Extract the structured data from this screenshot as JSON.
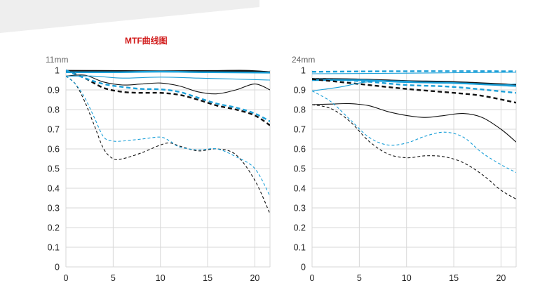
{
  "page": {
    "title": "MTF曲线图"
  },
  "colors": {
    "black": "#111111",
    "blue": "#1a9fd8",
    "grid": "#d7d7d7",
    "axis_text": "#222222",
    "focal_text": "#666666"
  },
  "chart_data": [
    {
      "type": "line",
      "focal_label": "11mm",
      "xlim": [
        0,
        21.6
      ],
      "ylim": [
        0,
        1
      ],
      "x_ticks": [
        0,
        5,
        10,
        15,
        20
      ],
      "y_ticks": [
        0,
        0.1,
        0.2,
        0.3,
        0.4,
        0.5,
        0.6,
        0.7,
        0.8,
        0.9,
        1
      ],
      "y_tick_labels": [
        "0",
        "0.1",
        "0.2",
        "0.3",
        "0.4",
        "0.5",
        "0.6",
        "0.7",
        "0.8",
        "0.9",
        "1"
      ],
      "grid": true,
      "series": [
        {
          "color": "black",
          "style": "solid",
          "weight": "thick",
          "points": [
            [
              0,
              0.997
            ],
            [
              5,
              0.996
            ],
            [
              10,
              0.995
            ],
            [
              15,
              0.996
            ],
            [
              19,
              0.997
            ],
            [
              21.6,
              0.99
            ]
          ]
        },
        {
          "color": "blue",
          "style": "solid",
          "weight": "thick",
          "points": [
            [
              0,
              0.99
            ],
            [
              5,
              0.99
            ],
            [
              10,
              0.993
            ],
            [
              15,
              0.99
            ],
            [
              21.6,
              0.988
            ]
          ]
        },
        {
          "color": "black",
          "style": "dashed",
          "weight": "thick",
          "points": [
            [
              0,
              1.0
            ],
            [
              2,
              0.96
            ],
            [
              4,
              0.91
            ],
            [
              6,
              0.89
            ],
            [
              8,
              0.885
            ],
            [
              10,
              0.885
            ],
            [
              12,
              0.875
            ],
            [
              14,
              0.85
            ],
            [
              16,
              0.82
            ],
            [
              18,
              0.8
            ],
            [
              20,
              0.77
            ],
            [
              21.6,
              0.72
            ]
          ]
        },
        {
          "color": "blue",
          "style": "dashed",
          "weight": "thick",
          "points": [
            [
              0,
              1.0
            ],
            [
              2,
              0.96
            ],
            [
              4,
              0.93
            ],
            [
              6,
              0.915
            ],
            [
              8,
              0.905
            ],
            [
              10,
              0.903
            ],
            [
              12,
              0.89
            ],
            [
              14,
              0.86
            ],
            [
              16,
              0.83
            ],
            [
              18,
              0.81
            ],
            [
              20,
              0.78
            ],
            [
              21.6,
              0.74
            ]
          ]
        },
        {
          "color": "black",
          "style": "solid",
          "weight": "thin",
          "points": [
            [
              0,
              0.97
            ],
            [
              2,
              0.975
            ],
            [
              4,
              0.94
            ],
            [
              6,
              0.925
            ],
            [
              8,
              0.93
            ],
            [
              10,
              0.935
            ],
            [
              12,
              0.92
            ],
            [
              14,
              0.89
            ],
            [
              16,
              0.88
            ],
            [
              18,
              0.9
            ],
            [
              20,
              0.93
            ],
            [
              21.6,
              0.9
            ]
          ]
        },
        {
          "color": "blue",
          "style": "solid",
          "weight": "thin",
          "points": [
            [
              0,
              0.97
            ],
            [
              3,
              0.97
            ],
            [
              6,
              0.96
            ],
            [
              10,
              0.965
            ],
            [
              14,
              0.96
            ],
            [
              18,
              0.955
            ],
            [
              21.6,
              0.95
            ]
          ]
        },
        {
          "color": "black",
          "style": "dashed",
          "weight": "thin",
          "points": [
            [
              0,
              0.97
            ],
            [
              1,
              0.93
            ],
            [
              2,
              0.84
            ],
            [
              3,
              0.72
            ],
            [
              4,
              0.6
            ],
            [
              5,
              0.55
            ],
            [
              6,
              0.55
            ],
            [
              8,
              0.58
            ],
            [
              10,
              0.62
            ],
            [
              11,
              0.63
            ],
            [
              12,
              0.615
            ],
            [
              14,
              0.59
            ],
            [
              16,
              0.6
            ],
            [
              18,
              0.57
            ],
            [
              20,
              0.44
            ],
            [
              21.6,
              0.27
            ]
          ]
        },
        {
          "color": "blue",
          "style": "dashed",
          "weight": "thin",
          "points": [
            [
              0,
              0.97
            ],
            [
              1,
              0.93
            ],
            [
              2,
              0.86
            ],
            [
              3,
              0.76
            ],
            [
              4,
              0.66
            ],
            [
              5,
              0.64
            ],
            [
              6,
              0.64
            ],
            [
              8,
              0.65
            ],
            [
              10,
              0.66
            ],
            [
              11,
              0.64
            ],
            [
              12,
              0.61
            ],
            [
              14,
              0.595
            ],
            [
              16,
              0.6
            ],
            [
              18,
              0.56
            ],
            [
              20,
              0.5
            ],
            [
              21.6,
              0.36
            ]
          ]
        }
      ]
    },
    {
      "type": "line",
      "focal_label": "24mm",
      "xlim": [
        0,
        21.6
      ],
      "ylim": [
        0,
        1
      ],
      "x_ticks": [
        0,
        5,
        10,
        15,
        20
      ],
      "y_ticks": [
        0,
        0.1,
        0.2,
        0.3,
        0.4,
        0.5,
        0.6,
        0.7,
        0.8,
        0.9,
        1
      ],
      "y_tick_labels": [
        "0",
        "0.1",
        "0.2",
        "0.3",
        "0.4",
        "0.5",
        "0.6",
        "0.7",
        "0.8",
        "0.9",
        "1"
      ],
      "grid": true,
      "series": [
        {
          "color": "blue",
          "style": "dashed",
          "weight": "thick",
          "points": [
            [
              0,
              0.992
            ],
            [
              10,
              0.995
            ],
            [
              21.6,
              0.995
            ]
          ]
        },
        {
          "color": "blue",
          "style": "solid",
          "weight": "thin",
          "points": [
            [
              0,
              0.982
            ],
            [
              10,
              0.985
            ],
            [
              21.6,
              0.99
            ]
          ]
        },
        {
          "color": "black",
          "style": "solid",
          "weight": "thick",
          "points": [
            [
              0,
              0.956
            ],
            [
              5,
              0.953
            ],
            [
              10,
              0.945
            ],
            [
              15,
              0.94
            ],
            [
              21.6,
              0.925
            ]
          ]
        },
        {
          "color": "blue",
          "style": "solid",
          "weight": "thick",
          "points": [
            [
              0,
              0.95
            ],
            [
              5,
              0.95
            ],
            [
              10,
              0.94
            ],
            [
              15,
              0.935
            ],
            [
              21.6,
              0.92
            ]
          ]
        },
        {
          "color": "blue",
          "style": "dashed",
          "weight": "thick",
          "points": [
            [
              0,
              0.955
            ],
            [
              5,
              0.945
            ],
            [
              10,
              0.925
            ],
            [
              15,
              0.915
            ],
            [
              21.6,
              0.885
            ]
          ]
        },
        {
          "color": "black",
          "style": "dashed",
          "weight": "thick",
          "points": [
            [
              0,
              0.955
            ],
            [
              5,
              0.93
            ],
            [
              10,
              0.905
            ],
            [
              15,
              0.885
            ],
            [
              18,
              0.87
            ],
            [
              21.6,
              0.835
            ]
          ]
        },
        {
          "color": "blue",
          "style": "solid",
          "weight": "thin",
          "points": [
            [
              0,
              0.895
            ],
            [
              3,
              0.915
            ],
            [
              5,
              0.935
            ],
            [
              7,
              0.945
            ],
            [
              10,
              0.945
            ],
            [
              13,
              0.935
            ],
            [
              16,
              0.935
            ],
            [
              19,
              0.925
            ],
            [
              21.6,
              0.93
            ]
          ]
        },
        {
          "color": "black",
          "style": "solid",
          "weight": "thin",
          "points": [
            [
              0,
              0.825
            ],
            [
              2,
              0.828
            ],
            [
              4,
              0.83
            ],
            [
              6,
              0.82
            ],
            [
              8,
              0.79
            ],
            [
              10,
              0.77
            ],
            [
              12,
              0.76
            ],
            [
              14,
              0.77
            ],
            [
              16,
              0.78
            ],
            [
              18,
              0.76
            ],
            [
              20,
              0.7
            ],
            [
              21.6,
              0.635
            ]
          ]
        },
        {
          "color": "blue",
          "style": "dashed",
          "weight": "thin",
          "points": [
            [
              0,
              0.895
            ],
            [
              2,
              0.84
            ],
            [
              4,
              0.75
            ],
            [
              6,
              0.66
            ],
            [
              8,
              0.62
            ],
            [
              10,
              0.63
            ],
            [
              12,
              0.665
            ],
            [
              14,
              0.685
            ],
            [
              16,
              0.66
            ],
            [
              18,
              0.58
            ],
            [
              20,
              0.52
            ],
            [
              21.6,
              0.48
            ]
          ]
        },
        {
          "color": "black",
          "style": "dashed",
          "weight": "thin",
          "points": [
            [
              0,
              0.825
            ],
            [
              2,
              0.805
            ],
            [
              4,
              0.74
            ],
            [
              6,
              0.64
            ],
            [
              8,
              0.575
            ],
            [
              10,
              0.555
            ],
            [
              12,
              0.565
            ],
            [
              14,
              0.56
            ],
            [
              16,
              0.53
            ],
            [
              18,
              0.47
            ],
            [
              20,
              0.39
            ],
            [
              21.6,
              0.345
            ]
          ]
        }
      ]
    }
  ]
}
